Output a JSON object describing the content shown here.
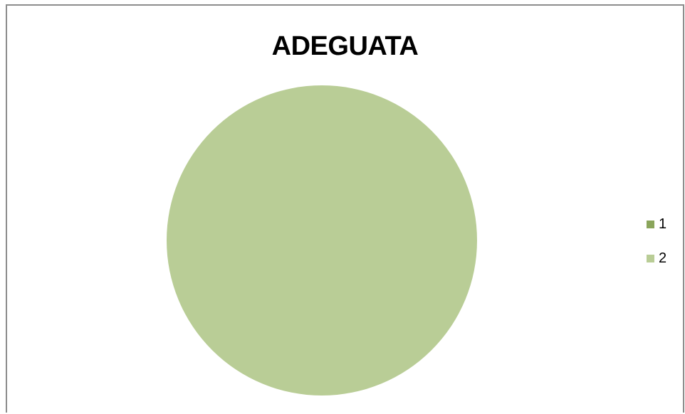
{
  "chart_data": {
    "type": "pie",
    "title": "ADEGUATA",
    "categories": [
      "1",
      "2"
    ],
    "values": [
      0,
      1
    ],
    "colors": [
      "#8aa55b",
      "#b9cd96"
    ],
    "legend_position": "right"
  }
}
